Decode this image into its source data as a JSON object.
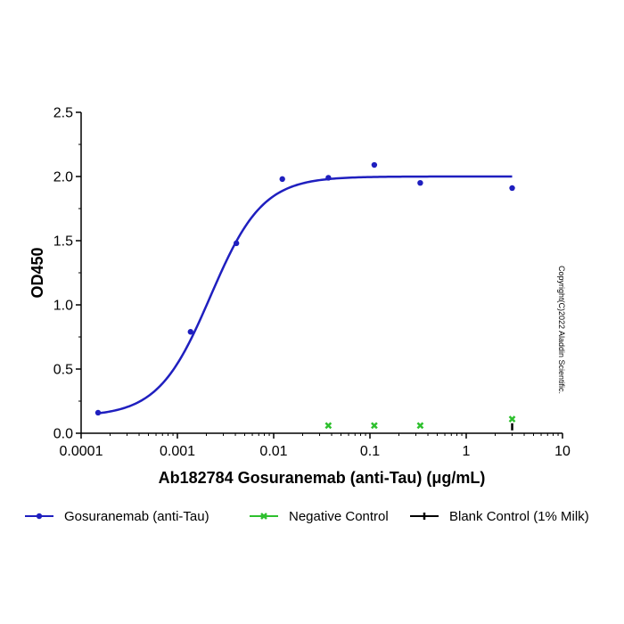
{
  "chart_data": {
    "type": "scatter",
    "xlabel": "Ab182784 Gosuranemab (anti-Tau) (μg/mL)",
    "ylabel": "OD450",
    "x_scale": "log",
    "xlim": [
      0.0001,
      10
    ],
    "ylim": [
      0,
      2.5
    ],
    "x_ticks": [
      "0.0001",
      "0.001",
      "0.01",
      "0.1",
      "1",
      "10"
    ],
    "y_ticks": [
      "0.0",
      "0.5",
      "1.0",
      "1.5",
      "2.0",
      "2.5"
    ],
    "grid": false,
    "legend_position": "bottom",
    "series": [
      {
        "name": "Gosuranemab (anti-Tau)",
        "color": "#1f1fbf",
        "marker": "circle",
        "x": [
          0.00015,
          0.00137,
          0.0041,
          0.0123,
          0.037,
          0.111,
          0.333,
          3
        ],
        "y": [
          0.16,
          0.79,
          1.48,
          1.98,
          1.99,
          2.09,
          1.95,
          1.91
        ],
        "fit": {
          "model": "4PL",
          "bottom": 0.13,
          "top": 2.0,
          "ec50": 0.0022,
          "hill": 1.6,
          "x_range": [
            0.00015,
            3
          ]
        }
      },
      {
        "name": "Negative Control",
        "color": "#2ec02e",
        "marker": "x",
        "x": [
          0.037,
          0.111,
          0.333,
          3
        ],
        "y": [
          0.06,
          0.06,
          0.06,
          0.11
        ]
      },
      {
        "name": "Blank Control (1% Milk)",
        "color": "#000000",
        "marker": "dash",
        "x": [
          3
        ],
        "y": [
          0.05
        ]
      }
    ],
    "annotation": "Copyright(C)2022 Aladdin Scientific."
  }
}
